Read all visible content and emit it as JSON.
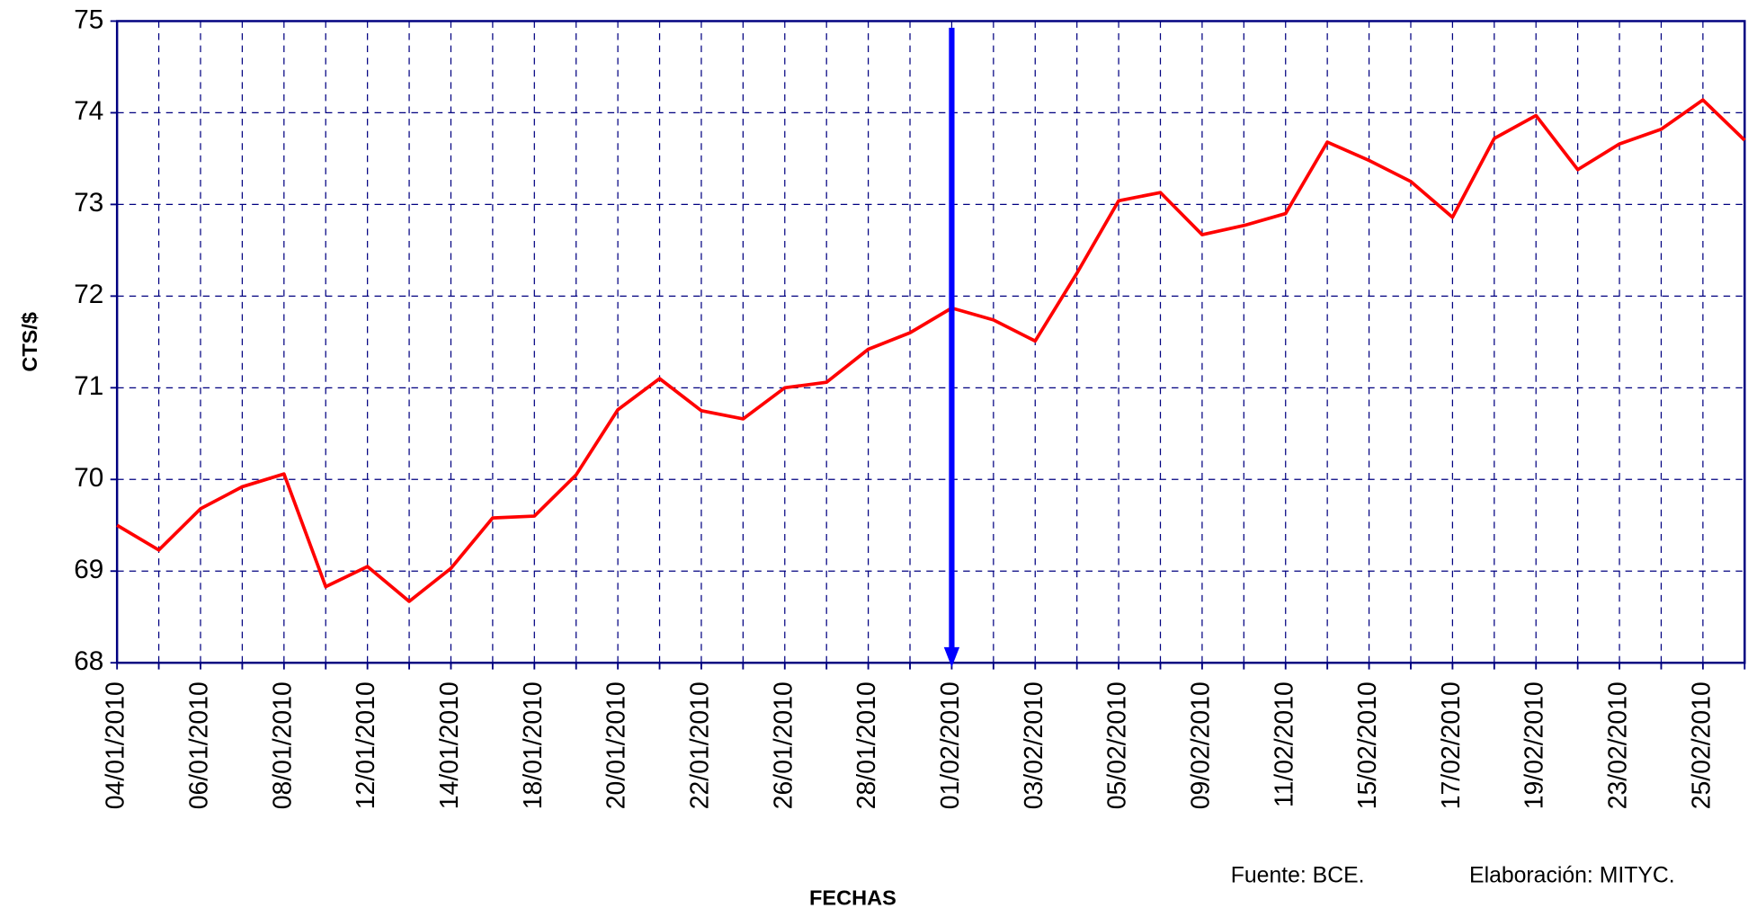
{
  "chart_data": {
    "type": "line",
    "y_label": "CTS/$",
    "x_label": "FECHAS",
    "source": "Fuente: BCE.",
    "credit": "Elaboración: MITYC.",
    "categories": [
      "04/01/2010",
      null,
      "06/01/2010",
      null,
      "08/01/2010",
      null,
      "12/01/2010",
      null,
      "14/01/2010",
      null,
      "18/01/2010",
      null,
      "20/01/2010",
      null,
      "22/01/2010",
      null,
      "26/01/2010",
      null,
      "28/01/2010",
      null,
      "01/02/2010",
      null,
      "03/02/2010",
      null,
      "05/02/2010",
      null,
      "09/02/2010",
      null,
      "11/02/2010",
      null,
      "15/02/2010",
      null,
      "17/02/2010",
      null,
      "19/02/2010",
      null,
      "23/02/2010",
      null,
      "25/02/2010",
      null
    ],
    "series": [
      {
        "name": "CTS/$",
        "color": "#ff0000",
        "values": [
          69.5,
          69.23,
          69.68,
          69.92,
          70.06,
          68.83,
          69.05,
          68.67,
          69.03,
          69.58,
          69.6,
          70.05,
          70.76,
          71.1,
          70.75,
          70.66,
          71.0,
          71.06,
          71.42,
          71.6,
          71.87,
          71.74,
          71.51,
          72.25,
          73.04,
          73.13,
          72.67,
          72.77,
          72.9,
          73.68,
          73.48,
          73.25,
          72.86,
          73.72,
          73.97,
          73.38,
          73.66,
          73.82,
          74.14,
          73.7
        ]
      }
    ],
    "ylim": [
      68,
      75
    ],
    "yticks": [
      68,
      69,
      70,
      71,
      72,
      73,
      74,
      75
    ],
    "grid": true,
    "vertical_marker": "01/02/2010",
    "marker_color": "#0000ff"
  }
}
